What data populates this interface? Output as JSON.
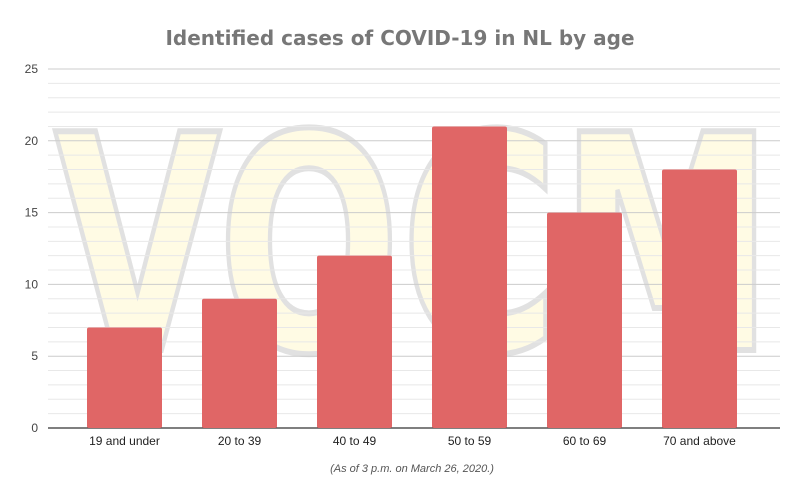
{
  "chart_data": {
    "type": "bar",
    "title": "Identified cases of COVID-19 in NL by age",
    "categories": [
      "19 and under",
      "20 to 39",
      "40 to 49",
      "50 to 59",
      "60 to 69",
      "70 and above"
    ],
    "values": [
      7,
      9,
      12,
      21,
      15,
      18
    ],
    "xlabel": "",
    "ylabel": "",
    "ylim": [
      0,
      25
    ],
    "yticks": [
      0,
      5,
      10,
      15,
      20,
      25
    ],
    "grid": true,
    "legend": "none",
    "bar_color": "#e06666",
    "annotation": "(As of 3 p.m. on March 26, 2020.)",
    "watermark": "VOCM"
  }
}
